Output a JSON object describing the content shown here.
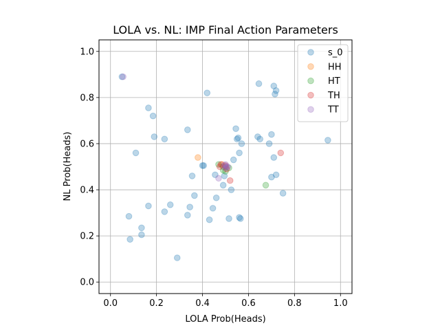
{
  "chart_data": {
    "type": "scatter",
    "title": "LOLA vs. NL: IMP Final Action Parameters",
    "xlabel": "LOLA Prob(Heads)",
    "ylabel": "NL Prob(Heads)",
    "xlim": [
      -0.05,
      1.05
    ],
    "ylim": [
      -0.05,
      1.05
    ],
    "xticks": [
      "0.0",
      "0.2",
      "0.4",
      "0.6",
      "0.8",
      "1.0"
    ],
    "yticks": [
      "0.0",
      "0.2",
      "0.4",
      "0.6",
      "0.8",
      "1.0"
    ],
    "grid": true,
    "legend_position": "top-right",
    "series": [
      {
        "name": "s_0",
        "color": "#1f77b4",
        "points": [
          [
            0.05,
            0.89
          ],
          [
            0.42,
            0.82
          ],
          [
            0.645,
            0.86
          ],
          [
            0.71,
            0.85
          ],
          [
            0.72,
            0.83
          ],
          [
            0.715,
            0.815
          ],
          [
            0.165,
            0.755
          ],
          [
            0.185,
            0.72
          ],
          [
            0.19,
            0.63
          ],
          [
            0.235,
            0.62
          ],
          [
            0.335,
            0.66
          ],
          [
            0.11,
            0.56
          ],
          [
            0.545,
            0.665
          ],
          [
            0.555,
            0.625
          ],
          [
            0.55,
            0.62
          ],
          [
            0.57,
            0.6
          ],
          [
            0.64,
            0.63
          ],
          [
            0.65,
            0.62
          ],
          [
            0.69,
            0.6
          ],
          [
            0.7,
            0.64
          ],
          [
            0.945,
            0.615
          ],
          [
            0.56,
            0.56
          ],
          [
            0.535,
            0.53
          ],
          [
            0.71,
            0.54
          ],
          [
            0.4,
            0.505
          ],
          [
            0.405,
            0.505
          ],
          [
            0.355,
            0.46
          ],
          [
            0.455,
            0.465
          ],
          [
            0.72,
            0.465
          ],
          [
            0.7,
            0.455
          ],
          [
            0.495,
            0.46
          ],
          [
            0.49,
            0.42
          ],
          [
            0.525,
            0.4
          ],
          [
            0.75,
            0.385
          ],
          [
            0.365,
            0.375
          ],
          [
            0.46,
            0.365
          ],
          [
            0.165,
            0.33
          ],
          [
            0.26,
            0.335
          ],
          [
            0.345,
            0.325
          ],
          [
            0.445,
            0.32
          ],
          [
            0.235,
            0.305
          ],
          [
            0.335,
            0.29
          ],
          [
            0.08,
            0.285
          ],
          [
            0.515,
            0.275
          ],
          [
            0.56,
            0.28
          ],
          [
            0.565,
            0.275
          ],
          [
            0.43,
            0.27
          ],
          [
            0.135,
            0.235
          ],
          [
            0.135,
            0.205
          ],
          [
            0.085,
            0.185
          ],
          [
            0.29,
            0.105
          ]
        ]
      },
      {
        "name": "HH",
        "color": "#ff7f0e",
        "points": [
          [
            0.38,
            0.54
          ],
          [
            0.485,
            0.51
          ],
          [
            0.5,
            0.5
          ]
        ]
      },
      {
        "name": "HT",
        "color": "#2ca02c",
        "points": [
          [
            0.675,
            0.42
          ],
          [
            0.47,
            0.51
          ],
          [
            0.49,
            0.5
          ],
          [
            0.5,
            0.48
          ],
          [
            0.515,
            0.495
          ],
          [
            0.49,
            0.485
          ]
        ]
      },
      {
        "name": "TH",
        "color": "#d62728",
        "points": [
          [
            0.74,
            0.56
          ],
          [
            0.48,
            0.51
          ],
          [
            0.475,
            0.5
          ],
          [
            0.52,
            0.44
          ],
          [
            0.5,
            0.505
          ],
          [
            0.505,
            0.49
          ]
        ]
      },
      {
        "name": "TT",
        "color": "#9467bd",
        "points": [
          [
            0.055,
            0.89
          ],
          [
            0.47,
            0.45
          ],
          [
            0.495,
            0.505
          ],
          [
            0.5,
            0.495
          ],
          [
            0.505,
            0.5
          ],
          [
            0.51,
            0.5
          ],
          [
            0.5,
            0.51
          ]
        ]
      }
    ]
  }
}
